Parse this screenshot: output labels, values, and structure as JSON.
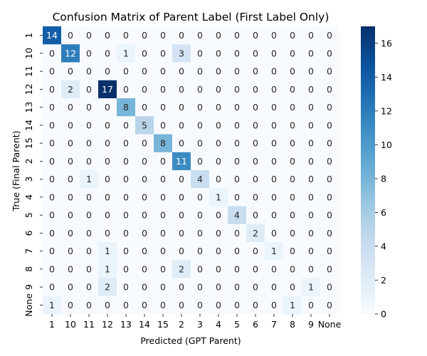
{
  "chart_data": {
    "type": "heatmap",
    "title": "Confusion Matrix of Parent Label (First Label Only)",
    "xlabel": "Predicted (GPT Parent)",
    "ylabel": "True (Final Parent)",
    "x_categories": [
      "1",
      "10",
      "11",
      "12",
      "13",
      "14",
      "15",
      "2",
      "3",
      "4",
      "5",
      "6",
      "7",
      "8",
      "9",
      "None"
    ],
    "y_categories": [
      "1",
      "10",
      "11",
      "12",
      "13",
      "14",
      "15",
      "2",
      "3",
      "4",
      "5",
      "6",
      "7",
      "8",
      "9",
      "None"
    ],
    "values": [
      [
        14,
        0,
        0,
        0,
        0,
        0,
        0,
        0,
        0,
        0,
        0,
        0,
        0,
        0,
        0,
        0
      ],
      [
        0,
        12,
        0,
        0,
        1,
        0,
        0,
        3,
        0,
        0,
        0,
        0,
        0,
        0,
        0,
        0
      ],
      [
        0,
        0,
        0,
        0,
        0,
        0,
        0,
        0,
        0,
        0,
        0,
        0,
        0,
        0,
        0,
        0
      ],
      [
        0,
        2,
        0,
        17,
        0,
        0,
        0,
        0,
        0,
        0,
        0,
        0,
        0,
        0,
        0,
        0
      ],
      [
        0,
        0,
        0,
        0,
        8,
        0,
        0,
        0,
        0,
        0,
        0,
        0,
        0,
        0,
        0,
        0
      ],
      [
        0,
        0,
        0,
        0,
        0,
        5,
        0,
        0,
        0,
        0,
        0,
        0,
        0,
        0,
        0,
        0
      ],
      [
        0,
        0,
        0,
        0,
        0,
        0,
        8,
        0,
        0,
        0,
        0,
        0,
        0,
        0,
        0,
        0
      ],
      [
        0,
        0,
        0,
        0,
        0,
        0,
        0,
        11,
        0,
        0,
        0,
        0,
        0,
        0,
        0,
        0
      ],
      [
        0,
        0,
        1,
        0,
        0,
        0,
        0,
        0,
        4,
        0,
        0,
        0,
        0,
        0,
        0,
        0
      ],
      [
        0,
        0,
        0,
        0,
        0,
        0,
        0,
        0,
        0,
        1,
        0,
        0,
        0,
        0,
        0,
        0
      ],
      [
        0,
        0,
        0,
        0,
        0,
        0,
        0,
        0,
        0,
        0,
        4,
        0,
        0,
        0,
        0,
        0
      ],
      [
        0,
        0,
        0,
        0,
        0,
        0,
        0,
        0,
        0,
        0,
        0,
        2,
        0,
        0,
        0,
        0
      ],
      [
        0,
        0,
        0,
        1,
        0,
        0,
        0,
        0,
        0,
        0,
        0,
        0,
        1,
        0,
        0,
        0
      ],
      [
        0,
        0,
        0,
        1,
        0,
        0,
        0,
        2,
        0,
        0,
        0,
        0,
        0,
        0,
        0,
        0
      ],
      [
        0,
        0,
        0,
        2,
        0,
        0,
        0,
        0,
        0,
        0,
        0,
        0,
        0,
        0,
        1,
        0
      ],
      [
        1,
        0,
        0,
        0,
        0,
        0,
        0,
        0,
        0,
        0,
        0,
        0,
        0,
        1,
        0,
        0
      ]
    ],
    "colormap": "Blues",
    "vmin": 0,
    "vmax": 17,
    "colorbar_ticks": [
      0,
      2,
      4,
      6,
      8,
      10,
      12,
      14,
      16
    ],
    "annotate": true,
    "grid": false
  }
}
